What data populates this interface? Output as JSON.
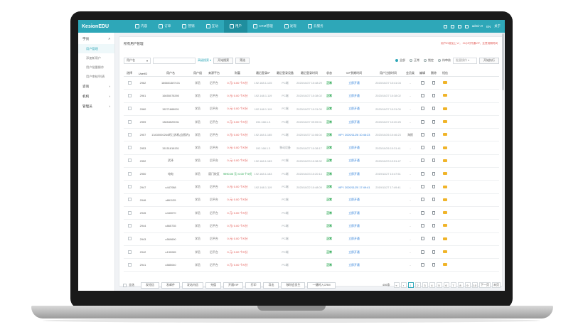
{
  "brand": {
    "logo": "KesionEDU"
  },
  "nav": [
    {
      "label": "内容",
      "icon": "grid-icon"
    },
    {
      "label": "订单",
      "icon": "doc-icon"
    },
    {
      "label": "营销",
      "icon": "tag-icon"
    },
    {
      "label": "互动",
      "icon": "chat-icon"
    },
    {
      "label": "用户",
      "icon": "user-icon",
      "active": true
    },
    {
      "label": "CRM管理",
      "icon": "crm-icon"
    },
    {
      "label": "发现",
      "icon": "compass-icon"
    },
    {
      "label": "云服务",
      "icon": "cloud-icon"
    }
  ],
  "nav_right": {
    "user": "admin ▾",
    "lang": "EN",
    "about": "关于"
  },
  "sidebar": {
    "groups": [
      {
        "label": "学员",
        "items": [
          "用户管理",
          "添加新用户",
          "用户批量操作",
          "用户审核/列表"
        ],
        "active_index": 0
      },
      {
        "label": "咨询",
        "items": []
      },
      {
        "label": "机构",
        "items": []
      },
      {
        "label": "管理员",
        "items": []
      }
    ]
  },
  "panel": {
    "title": "所有用户管理",
    "hint": "用户ID前加上“u”， 24小时开通VIP，注意到期时间"
  },
  "filters": {
    "select_label": "用户名",
    "advanced_link": "高级搜索 ▾",
    "search_btn": "开始搜索",
    "filter_btn": "筛选",
    "radios": [
      {
        "label": "全部",
        "on": true
      },
      {
        "label": "正常",
        "on": false
      },
      {
        "label": "锁定",
        "on": false
      },
      {
        "label": "待审核",
        "on": false
      }
    ],
    "batch_select": "批量操作 ▾",
    "exec_btn": "开始执行"
  },
  "table": {
    "headers": [
      "选择",
      "UserID",
      "用户名",
      "用户组",
      "来源平台",
      "财富",
      "最后登录IP",
      "最后登录设备",
      "最后登录时间",
      "状态",
      "VIP到期时间",
      "用户注册时间",
      "会员类",
      "编辑",
      "删除",
      "短信"
    ],
    "rows": [
      {
        "id": "2962",
        "name": "16665138?101",
        "group": "学员",
        "platform": "后平台",
        "money": "0.元/ 0.00 个/0分",
        "money_type": "normal",
        "ip": "192.168.1.125",
        "device": "PC端",
        "last": "2020/10/27 10:48:29",
        "status": "正常",
        "vip": "立即开通",
        "reg": "2020/10/27 10:41:04",
        "kind": "-"
      },
      {
        "id": "2961",
        "name": "16655078390",
        "group": "学员",
        "platform": "后平台",
        "money": "0.元/ 0.00 个/0分",
        "money_type": "normal",
        "ip": "192.168.1.119",
        "device": "PC端",
        "last": "2020/10/27 10:38:02",
        "status": "正常",
        "vip": "立即开通",
        "reg": "2020/10/27 10:38:02",
        "kind": "-"
      },
      {
        "id": "2960",
        "name": "15271868901",
        "group": "学员",
        "platform": "后平台",
        "money": "0.元/ 0.00 个/0分",
        "money_type": "normal",
        "ip": "192.168.1.119",
        "device": "PC端",
        "last": "2020/10/27 10:31:00",
        "status": "正常",
        "vip": "立即开通",
        "reg": "2020/10/27 10:31:00",
        "kind": "-"
      },
      {
        "id": "2959",
        "name": "13654529031",
        "group": "学员",
        "platform": "后平台",
        "money": "0.元/ 0.00 个/0分",
        "money_type": "normal",
        "ip": "192.168.1.3",
        "device": "PC端",
        "last": "2020/10/27 09:59:01",
        "status": "正常",
        "vip": "立即开通",
        "reg": "2020/10/27 10:20:25",
        "kind": "-"
      },
      {
        "id": "2957",
        "name": "13430000264的江苏机(自报内)",
        "group": "学员",
        "platform": "后平台",
        "money": "0.元/ 0.00 个/0分",
        "money_type": "normal",
        "ip": "192.168.1.185",
        "device": "PC端",
        "last": "2020/10/27 11:06:04",
        "status": "正常",
        "vip": "VIP / 2020/11/26 10:46:23",
        "reg": "2020/10/26 10:46:23",
        "kind": "海报"
      },
      {
        "id": "2953",
        "name": "15151818151",
        "group": "学员",
        "platform": "后平台",
        "money": "0.元/ 0.00 个/0分",
        "money_type": "normal",
        "ip": "192.168.1.3",
        "device": "移动设备",
        "last": "2020/10/27 10:38:17",
        "status": "正常",
        "vip": "立即开通",
        "reg": "2020/10/26 10:31:41",
        "kind": "-"
      },
      {
        "id": "2952",
        "name": "武泽",
        "group": "学员",
        "platform": "后平台",
        "money": "0.元/ 0.00 个/0分",
        "money_type": "normal",
        "ip": "192.168.1.183",
        "device": "PC端",
        "last": "2020/10/23 10:38:32",
        "status": "正常",
        "vip": "立即开通",
        "reg": "2020/10/23 12:51:47",
        "kind": "-"
      },
      {
        "id": "2950",
        "name": "电电",
        "group": "学员",
        "platform": "厦门校区",
        "money": "9990.00 元/ 0.00 个/0分",
        "money_type": "rich",
        "ip": "192.168.1.183",
        "device": "PC端",
        "last": "2020/10/23 10:20:14",
        "status": "正常",
        "vip": "立即开通",
        "reg": "2019/11/27 10:47:51",
        "kind": "-"
      },
      {
        "id": "2947",
        "name": "u447088",
        "group": "学员",
        "platform": "后平台",
        "money": "0.元/ 0.00 个/0分",
        "money_type": "normal",
        "ip": "192.168.1.119",
        "device": "PC端",
        "last": "2020/10/22 10:48:09",
        "status": "正常",
        "vip": "VIP / 2020/11/20 17:49:41",
        "reg": "2019/11/27 17:49:41",
        "kind": "-"
      },
      {
        "id": "2946",
        "name": "u861135",
        "group": "学员",
        "platform": "后平台",
        "money": "0.元/ 0.00 个/0分",
        "money_type": "normal",
        "ip": "",
        "device": "PC端",
        "last": "",
        "status": "正常",
        "vip": "立即开通",
        "reg": "",
        "kind": "-"
      },
      {
        "id": "2945",
        "name": "u443070",
        "group": "学员",
        "platform": "后平台",
        "money": "0.元/ 0.00 个/0分",
        "money_type": "normal",
        "ip": "",
        "device": "PC端",
        "last": "",
        "status": "正常",
        "vip": "立即开通",
        "reg": "",
        "kind": "-"
      },
      {
        "id": "2944",
        "name": "u865735",
        "group": "学员",
        "platform": "后平台",
        "money": "0.元/ 0.00 个/0分",
        "money_type": "normal",
        "ip": "",
        "device": "PC端",
        "last": "",
        "status": "正常",
        "vip": "立即开通",
        "reg": "",
        "kind": "-"
      },
      {
        "id": "2943",
        "name": "u569690",
        "group": "学员",
        "platform": "后平台",
        "money": "0.元/ 0.00 个/0分",
        "money_type": "normal",
        "ip": "",
        "device": "PC端",
        "last": "",
        "status": "正常",
        "vip": "立即开通",
        "reg": "",
        "kind": "-"
      },
      {
        "id": "2942",
        "name": "u130065",
        "group": "学员",
        "platform": "后平台",
        "money": "0.元/ 0.00 个/0分",
        "money_type": "normal",
        "ip": "",
        "device": "PC端",
        "last": "",
        "status": "正常",
        "vip": "立即开通",
        "reg": "",
        "kind": "-"
      },
      {
        "id": "2941",
        "name": "u585040",
        "group": "学员",
        "platform": "后平台",
        "money": "0.元/ 0.00 个/0分",
        "money_type": "normal",
        "ip": "",
        "device": "PC端",
        "last": "",
        "status": "正常",
        "vip": "立即开通",
        "reg": "",
        "kind": "-"
      }
    ]
  },
  "bottom": {
    "select_all": "全选",
    "buttons": [
      "发短信",
      "发邮件",
      "发站内信",
      "充值",
      "开通VIP",
      "打印",
      "导出",
      "移除会员生",
      "一键转入CRM"
    ],
    "pager_summary": "406条",
    "pages": [
      "«",
      "‹",
      "1",
      "2",
      "3",
      "4",
      "5",
      "6",
      "7",
      "8",
      "9",
      "10",
      "下一页",
      "末页"
    ],
    "current_page": "1"
  }
}
